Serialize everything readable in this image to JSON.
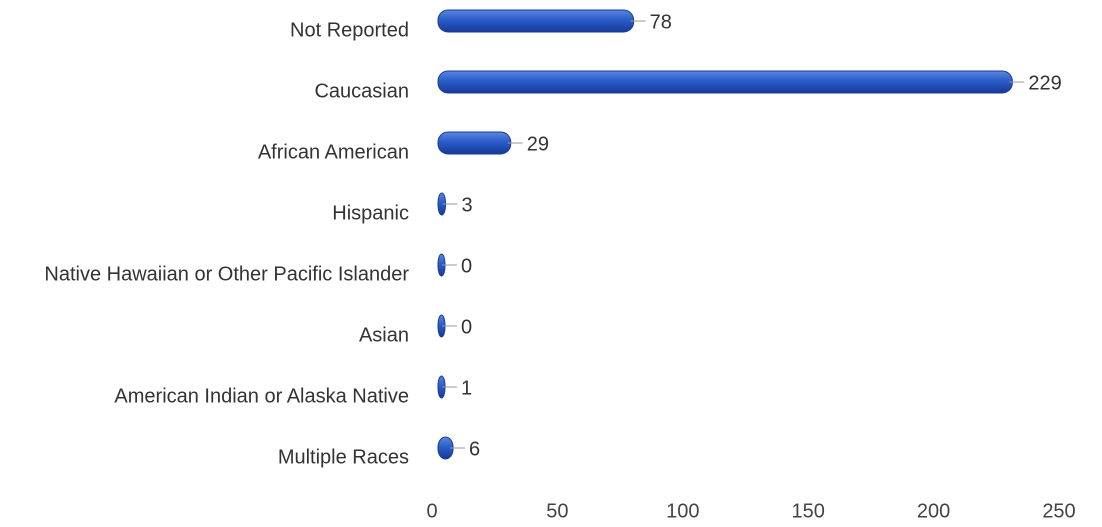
{
  "chart_data": {
    "type": "bar",
    "orientation": "horizontal",
    "categories": [
      "Not Reported",
      "Caucasian",
      "African American",
      "Hispanic",
      "Native Hawaiian or Other Pacific Islander",
      "Asian",
      "American Indian or Alaska Native",
      "Multiple Races"
    ],
    "values": [
      78,
      229,
      29,
      3,
      0,
      0,
      1,
      6
    ],
    "color": "#2a5cc8",
    "xlim": [
      0,
      250
    ],
    "xticks": [
      0,
      50,
      100,
      150,
      200,
      250
    ],
    "grid": false
  }
}
